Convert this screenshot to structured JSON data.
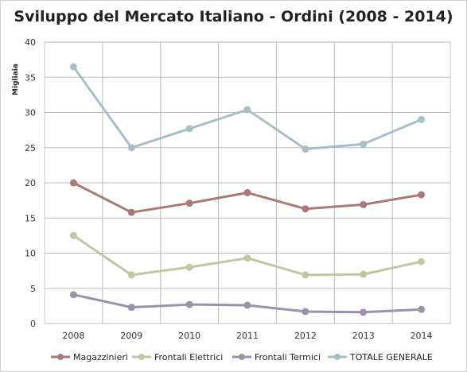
{
  "chart_data": {
    "type": "line",
    "title": "Sviluppo del Mercato Italiano - Ordini (2008 - 2014)",
    "ylabel": "Migliaia",
    "xlabel": "",
    "ylim": [
      0,
      40
    ],
    "yticks": [
      0,
      5,
      10,
      15,
      20,
      25,
      30,
      35,
      40
    ],
    "categories": [
      "2008",
      "2009",
      "2010",
      "2011",
      "2012",
      "2013",
      "2014"
    ],
    "grid": true,
    "legend_position": "bottom",
    "series": [
      {
        "name": "Magazzinieri",
        "color": "#a97a78",
        "values": [
          20.0,
          15.8,
          17.1,
          18.6,
          16.3,
          16.9,
          18.3
        ]
      },
      {
        "name": "Frontali Elettrici",
        "color": "#c2c6a2",
        "values": [
          12.5,
          6.9,
          8.0,
          9.3,
          6.9,
          7.0,
          8.8
        ]
      },
      {
        "name": "Frontali Termici",
        "color": "#9c91ac",
        "values": [
          4.1,
          2.3,
          2.7,
          2.6,
          1.7,
          1.6,
          2.0
        ]
      },
      {
        "name": "TOTALE GENERALE",
        "color": "#a7bfc6",
        "values": [
          36.5,
          25.0,
          27.7,
          30.4,
          24.8,
          25.5,
          29.0
        ]
      }
    ]
  }
}
